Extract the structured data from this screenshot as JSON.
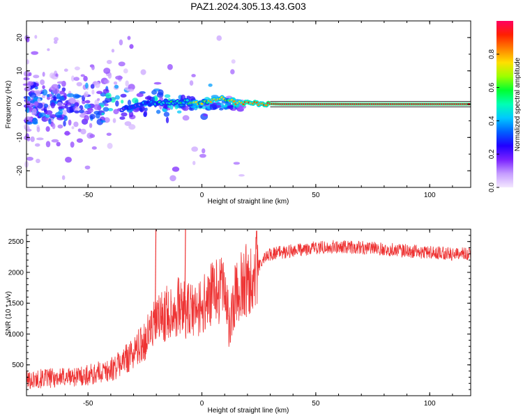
{
  "title": "PAZ1.2024.305.13.43.G03",
  "chart_data": [
    {
      "type": "heatmap",
      "xlabel": "Height of straight line (km)",
      "ylabel": "Frequency (Hz)",
      "xlim": [
        -77,
        118
      ],
      "ylim": [
        -25,
        25
      ],
      "xticks": [
        -50,
        0,
        50,
        100
      ],
      "yticks": [
        -20,
        -10,
        0,
        10,
        20
      ],
      "colorbar": {
        "label": "Normalized spectral amplitude",
        "range": [
          0,
          1
        ],
        "ticks": [
          0.0,
          0.2,
          0.4,
          0.6,
          0.8
        ],
        "colors": [
          "#f4e8ff",
          "#c59cff",
          "#7a22ff",
          "#2000ff",
          "#0060ff",
          "#00c8ff",
          "#00ffb4",
          "#00ff30",
          "#9cff00",
          "#ffe000",
          "#ff8000",
          "#ff2000",
          "#ff0060"
        ]
      },
      "ridge": [
        {
          "x": -35,
          "y": -1.5,
          "amp": 0.15
        },
        {
          "x": -28,
          "y": 0.0,
          "amp": 0.25
        },
        {
          "x": -22,
          "y": 0.3,
          "amp": 0.35
        },
        {
          "x": -15,
          "y": 0.6,
          "amp": 0.45
        },
        {
          "x": -8,
          "y": 0.8,
          "amp": 0.55
        },
        {
          "x": 0,
          "y": 0.3,
          "amp": 0.65
        },
        {
          "x": 8,
          "y": 2.0,
          "amp": 0.7
        },
        {
          "x": 15,
          "y": 0.5,
          "amp": 0.75
        },
        {
          "x": 25,
          "y": 0.2,
          "amp": 0.85
        },
        {
          "x": 35,
          "y": 0.0,
          "amp": 0.95
        },
        {
          "x": 118,
          "y": 0.0,
          "amp": 0.95
        }
      ]
    },
    {
      "type": "line",
      "xlabel": "Height of straight line (km)",
      "ylabel": "SNR (10 * v/v)",
      "xlim": [
        -77,
        118
      ],
      "ylim": [
        0,
        2700
      ],
      "xticks": [
        -50,
        0,
        50,
        100
      ],
      "yticks": [
        500,
        1000,
        1500,
        2000,
        2500
      ],
      "color": "#ee3333",
      "series": [
        {
          "x": [
            -77,
            -70,
            -60,
            -50,
            -40,
            -35,
            -30,
            -25,
            -22,
            -20,
            -15,
            -10,
            -8,
            -5,
            0,
            5,
            10,
            12,
            15,
            20,
            25,
            28,
            30,
            40,
            50,
            60,
            70,
            80,
            90,
            100,
            110,
            118
          ],
          "y": [
            250,
            280,
            300,
            330,
            420,
            550,
            700,
            900,
            1100,
            1200,
            1350,
            1450,
            1400,
            1350,
            1450,
            1650,
            1800,
            1100,
            1700,
            1900,
            2100,
            2250,
            2300,
            2350,
            2400,
            2420,
            2400,
            2380,
            2350,
            2320,
            2300,
            2300
          ]
        }
      ],
      "spikes": [
        {
          "x": -20.5,
          "y": 2700
        },
        {
          "x": -7.5,
          "y": 2700
        }
      ]
    }
  ]
}
